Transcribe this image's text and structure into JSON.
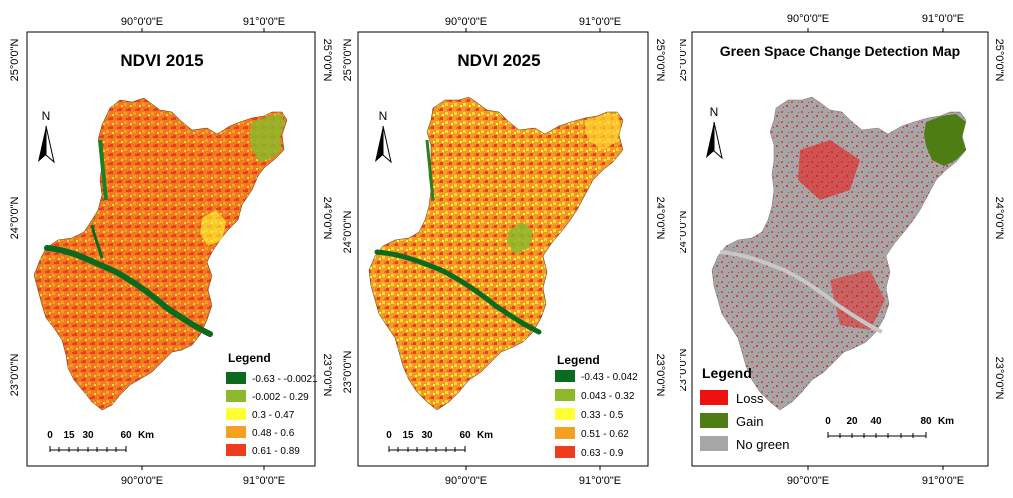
{
  "panels": [
    {
      "title": "NDVI 2015",
      "top_ticks": [
        "90°0'0\"E",
        "91°0'0\"E"
      ],
      "bottom_ticks": [
        "90°0'0\"E",
        "91°0'0\"E"
      ],
      "left_ticks": [
        "25°0'0\"N",
        "24°0'0\"N",
        "23°0'0\"N"
      ],
      "right_ticks": [
        "25°0'0\"N",
        "24°0'0\"N",
        "23°0'0\"N"
      ],
      "north_label": "N",
      "legend_title": "Legend",
      "legend": [
        {
          "label": "-0.63 - -0.0021",
          "color": "#0a6b1e"
        },
        {
          "label": "-0.002 - 0.29",
          "color": "#8cb82a"
        },
        {
          "label": "0.3 - 0.47",
          "color": "#ffff33"
        },
        {
          "label": "0.48 - 0.6",
          "color": "#f5a020"
        },
        {
          "label": "0.61 - 0.89",
          "color": "#f03c1e"
        }
      ],
      "scale": {
        "labels": [
          "0",
          "15",
          "30",
          "60"
        ],
        "unit": "Km"
      }
    },
    {
      "title": "NDVI 2025",
      "top_ticks": [
        "90°0'0\"E",
        "91°0'0\"E"
      ],
      "bottom_ticks": [
        "90°0'0\"E",
        "91°0'0\"E"
      ],
      "left_ticks": [
        "25°0'0\"N",
        "24°0'0\"N",
        "23°0'0\"N"
      ],
      "right_ticks": [
        "25°0'0\"N",
        "24°0'0\"N",
        "23°0'0\"N"
      ],
      "north_label": "N",
      "legend_title": "Legend",
      "legend": [
        {
          "label": "-0.43 - 0.042",
          "color": "#0a6b1e"
        },
        {
          "label": "0.043 - 0.32",
          "color": "#8cb82a"
        },
        {
          "label": "0.33 - 0.5",
          "color": "#ffff33"
        },
        {
          "label": "0.51 - 0.62",
          "color": "#f5a020"
        },
        {
          "label": "0.63 - 0.9",
          "color": "#f03c1e"
        }
      ],
      "scale": {
        "labels": [
          "0",
          "15",
          "30",
          "60"
        ],
        "unit": "Km"
      }
    },
    {
      "title": "Green Space Change Detection Map",
      "top_ticks": [
        "90°0'0\"E",
        "91°0'0\"E"
      ],
      "bottom_ticks": [
        "90°0'0\"E",
        "91°0'0\"E"
      ],
      "left_ticks": [
        "25°0'0\"N",
        "24°0'0\"N",
        "23°0'0\"N"
      ],
      "right_ticks": [
        "25°0'0\"N",
        "24°0'0\"N",
        "23°0'0\"N"
      ],
      "north_label": "N",
      "legend_title": "Legend",
      "legend": [
        {
          "label": "Loss",
          "color": "#ee1111"
        },
        {
          "label": "Gain",
          "color": "#4e7d14"
        },
        {
          "label": "No green",
          "color": "#a6a6a6"
        }
      ],
      "scale": {
        "labels": [
          "0",
          "20",
          "40",
          "80"
        ],
        "unit": "Km"
      }
    }
  ]
}
